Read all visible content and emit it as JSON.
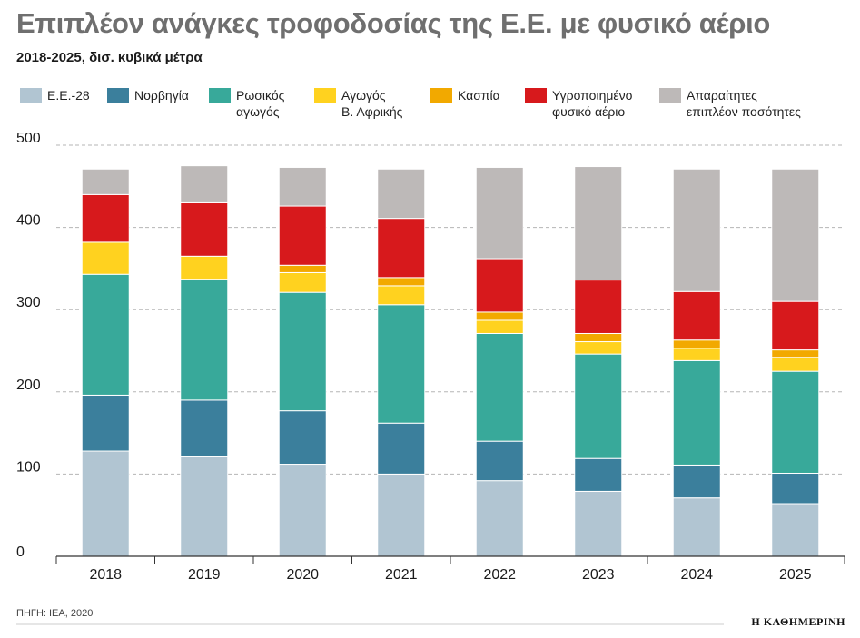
{
  "header": {
    "title": "Επιπλέον ανάγκες τροφοδοσίας της Ε.Ε. με φυσικό αέριο",
    "subtitle": "2018-2025, δισ. κυβικά μέτρα"
  },
  "footer": {
    "source": "ΠΗΓΗ: IEA, 2020",
    "brand": "Η ΚΑΘΗΜΕΡΙΝΗ"
  },
  "chart_data": {
    "type": "bar",
    "stacked": true,
    "categories": [
      "2018",
      "2019",
      "2020",
      "2021",
      "2022",
      "2023",
      "2024",
      "2025"
    ],
    "ylim": [
      0,
      500
    ],
    "yticks": [
      0,
      100,
      200,
      300,
      400,
      500
    ],
    "grid": "horizontal-dashed",
    "legend_position": "top",
    "series": [
      {
        "name": "Ε.Ε.-28",
        "color": "#b1c5d2",
        "values": [
          128,
          121,
          112,
          100,
          92,
          79,
          71,
          64
        ]
      },
      {
        "name": "Νορβηγία",
        "color": "#3b7f9c",
        "values": [
          68,
          69,
          65,
          62,
          48,
          40,
          40,
          37
        ]
      },
      {
        "name": "Ρωσικός\nαγωγός",
        "color": "#38a99a",
        "values": [
          147,
          147,
          144,
          144,
          131,
          127,
          127,
          124
        ]
      },
      {
        "name": "Αγωγός\nΒ. Αφρικής",
        "color": "#ffd21f",
        "values": [
          39,
          28,
          24,
          23,
          16,
          15,
          15,
          17
        ]
      },
      {
        "name": "Κασπία",
        "color": "#f2a900",
        "values": [
          0,
          0,
          9,
          10,
          10,
          10,
          10,
          9
        ]
      },
      {
        "name": "Υγροποιημένο\nφυσικό αέριο",
        "color": "#d7191c",
        "values": [
          58,
          65,
          72,
          72,
          65,
          65,
          59,
          59
        ]
      },
      {
        "name": "Απαραίτητες\nεπιπλέον ποσότητες",
        "color": "#bdb9b8",
        "values": [
          31,
          45,
          47,
          60,
          111,
          138,
          149,
          161
        ]
      }
    ]
  }
}
